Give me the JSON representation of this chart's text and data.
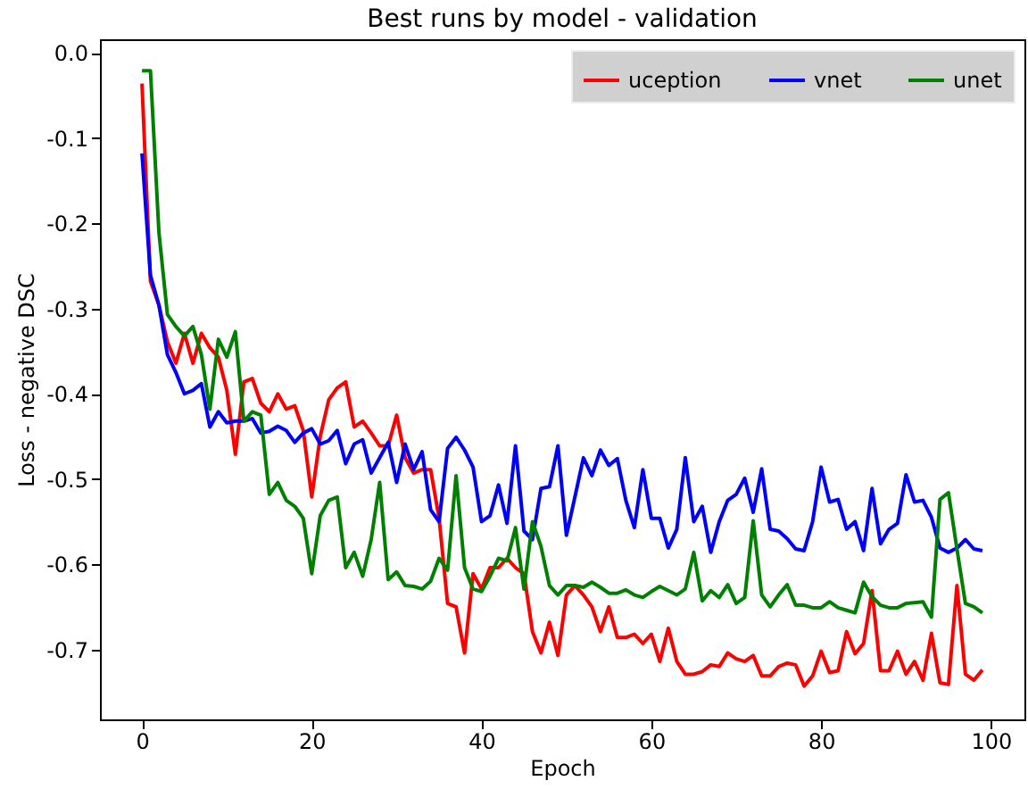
{
  "chart_data": {
    "type": "line",
    "title": "Best runs by model - validation",
    "xlabel": "Epoch",
    "ylabel": "Loss - negative DSC",
    "x": [
      0,
      1,
      2,
      3,
      4,
      5,
      6,
      7,
      8,
      9,
      10,
      11,
      12,
      13,
      14,
      15,
      16,
      17,
      18,
      19,
      20,
      21,
      22,
      23,
      24,
      25,
      26,
      27,
      28,
      29,
      30,
      31,
      32,
      33,
      34,
      35,
      36,
      37,
      38,
      39,
      40,
      41,
      42,
      43,
      44,
      45,
      46,
      47,
      48,
      49,
      50,
      51,
      52,
      53,
      54,
      55,
      56,
      57,
      58,
      59,
      60,
      61,
      62,
      63,
      64,
      65,
      66,
      67,
      68,
      69,
      70,
      71,
      72,
      73,
      74,
      75,
      76,
      77,
      78,
      79,
      80,
      81,
      82,
      83,
      84,
      85,
      86,
      87,
      88,
      89,
      90,
      91,
      92,
      93,
      94,
      95,
      96,
      97,
      98,
      99
    ],
    "series": [
      {
        "name": "uception",
        "color": "#ff0000",
        "values": [
          -0.036,
          -0.268,
          -0.296,
          -0.339,
          -0.364,
          -0.329,
          -0.364,
          -0.329,
          -0.346,
          -0.357,
          -0.396,
          -0.471,
          -0.386,
          -0.382,
          -0.411,
          -0.421,
          -0.4,
          -0.418,
          -0.414,
          -0.443,
          -0.521,
          -0.45,
          -0.407,
          -0.393,
          -0.386,
          -0.439,
          -0.432,
          -0.446,
          -0.461,
          -0.461,
          -0.425,
          -0.475,
          -0.493,
          -0.489,
          -0.489,
          -0.546,
          -0.646,
          -0.65,
          -0.704,
          -0.611,
          -0.629,
          -0.604,
          -0.604,
          -0.593,
          -0.604,
          -0.611,
          -0.679,
          -0.704,
          -0.668,
          -0.707,
          -0.636,
          -0.625,
          -0.636,
          -0.65,
          -0.679,
          -0.65,
          -0.686,
          -0.686,
          -0.682,
          -0.693,
          -0.682,
          -0.714,
          -0.675,
          -0.714,
          -0.729,
          -0.729,
          -0.726,
          -0.718,
          -0.72,
          -0.704,
          -0.711,
          -0.714,
          -0.707,
          -0.731,
          -0.731,
          -0.72,
          -0.716,
          -0.718,
          -0.743,
          -0.731,
          -0.702,
          -0.727,
          -0.725,
          -0.679,
          -0.705,
          -0.693,
          -0.631,
          -0.725,
          -0.725,
          -0.702,
          -0.729,
          -0.714,
          -0.736,
          -0.681,
          -0.739,
          -0.741,
          -0.625,
          -0.729,
          -0.736,
          -0.724
        ]
      },
      {
        "name": "vnet",
        "color": "#0000ff",
        "values": [
          -0.118,
          -0.261,
          -0.296,
          -0.354,
          -0.375,
          -0.4,
          -0.396,
          -0.388,
          -0.439,
          -0.421,
          -0.434,
          -0.432,
          -0.432,
          -0.429,
          -0.446,
          -0.444,
          -0.438,
          -0.443,
          -0.457,
          -0.446,
          -0.441,
          -0.459,
          -0.455,
          -0.443,
          -0.482,
          -0.459,
          -0.454,
          -0.493,
          -0.475,
          -0.457,
          -0.504,
          -0.459,
          -0.489,
          -0.468,
          -0.536,
          -0.55,
          -0.464,
          -0.451,
          -0.466,
          -0.486,
          -0.55,
          -0.543,
          -0.507,
          -0.552,
          -0.461,
          -0.561,
          -0.571,
          -0.511,
          -0.509,
          -0.461,
          -0.566,
          -0.521,
          -0.475,
          -0.496,
          -0.466,
          -0.484,
          -0.476,
          -0.525,
          -0.557,
          -0.489,
          -0.546,
          -0.546,
          -0.581,
          -0.559,
          -0.475,
          -0.55,
          -0.532,
          -0.586,
          -0.55,
          -0.525,
          -0.518,
          -0.499,
          -0.539,
          -0.488,
          -0.559,
          -0.561,
          -0.57,
          -0.582,
          -0.584,
          -0.55,
          -0.486,
          -0.527,
          -0.524,
          -0.559,
          -0.55,
          -0.584,
          -0.511,
          -0.576,
          -0.559,
          -0.552,
          -0.495,
          -0.527,
          -0.525,
          -0.545,
          -0.581,
          -0.586,
          -0.581,
          -0.571,
          -0.582,
          -0.584
        ]
      },
      {
        "name": "unet",
        "color": "#008000",
        "values": [
          -0.021,
          -0.021,
          -0.211,
          -0.307,
          -0.321,
          -0.332,
          -0.321,
          -0.354,
          -0.418,
          -0.336,
          -0.357,
          -0.327,
          -0.432,
          -0.421,
          -0.425,
          -0.518,
          -0.504,
          -0.525,
          -0.532,
          -0.546,
          -0.611,
          -0.543,
          -0.525,
          -0.521,
          -0.604,
          -0.586,
          -0.614,
          -0.571,
          -0.504,
          -0.618,
          -0.609,
          -0.625,
          -0.626,
          -0.629,
          -0.62,
          -0.593,
          -0.607,
          -0.496,
          -0.604,
          -0.629,
          -0.632,
          -0.614,
          -0.593,
          -0.596,
          -0.557,
          -0.629,
          -0.55,
          -0.579,
          -0.625,
          -0.636,
          -0.625,
          -0.625,
          -0.627,
          -0.621,
          -0.627,
          -0.634,
          -0.634,
          -0.63,
          -0.636,
          -0.639,
          -0.632,
          -0.626,
          -0.631,
          -0.636,
          -0.629,
          -0.586,
          -0.643,
          -0.631,
          -0.639,
          -0.624,
          -0.646,
          -0.639,
          -0.549,
          -0.636,
          -0.65,
          -0.636,
          -0.624,
          -0.648,
          -0.648,
          -0.651,
          -0.651,
          -0.644,
          -0.651,
          -0.654,
          -0.657,
          -0.621,
          -0.638,
          -0.648,
          -0.651,
          -0.651,
          -0.646,
          -0.645,
          -0.644,
          -0.662,
          -0.524,
          -0.516,
          -0.582,
          -0.646,
          -0.65,
          -0.657
        ]
      }
    ],
    "xlim": [
      -4.95,
      103.95
    ],
    "xticks": [
      0,
      20,
      40,
      60,
      80,
      100
    ],
    "ylim": [
      -0.782,
      0.016
    ],
    "yticks": [
      {
        "value": 0,
        "label": "0.0"
      },
      {
        "value": -0.1,
        "label": "-0.1"
      },
      {
        "value": -0.2,
        "label": "-0.2"
      },
      {
        "value": -0.3,
        "label": "-0.3"
      },
      {
        "value": -0.4,
        "label": "-0.4"
      },
      {
        "value": -0.5,
        "label": "-0.5"
      },
      {
        "value": -0.6,
        "label": "-0.6"
      },
      {
        "value": -0.7,
        "label": "-0.7"
      }
    ],
    "legend": "top right",
    "grid": false,
    "marker": "none",
    "line_style": "solid"
  }
}
